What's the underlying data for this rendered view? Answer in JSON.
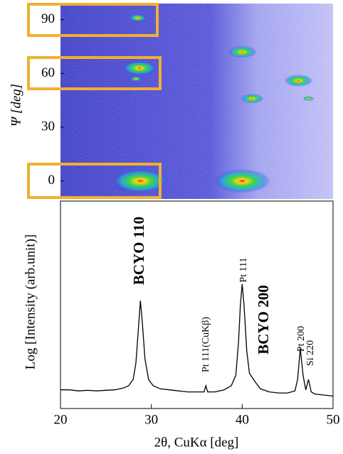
{
  "chart_data": [
    {
      "type": "scatter",
      "ylabel": "Ψ [deg]",
      "xlim": [
        20,
        50
      ],
      "ylim": [
        -10,
        99
      ],
      "yticks": [
        0,
        30,
        60,
        90
      ],
      "x": [
        28.8,
        40,
        28.7,
        28.3,
        40,
        46.2,
        41.1,
        47.3,
        28.5
      ],
      "y": [
        0,
        0,
        63,
        57,
        72,
        56,
        46,
        46,
        91
      ],
      "sizes": [
        10,
        10,
        6,
        2,
        5,
        5,
        4,
        2,
        3
      ]
    },
    {
      "type": "line",
      "xlabel": "2θ, CuKα [deg]",
      "ylabel": "Log [Intensity (arb.unit)]",
      "xlim": [
        20,
        50
      ],
      "xticks": [
        20,
        30,
        40,
        50
      ],
      "ylim": [
        0,
        100
      ],
      "color": "#000000",
      "x": [
        20,
        21,
        22,
        23,
        24,
        25,
        26,
        27,
        27.5,
        28,
        28.3,
        28.6,
        28.8,
        29.0,
        29.3,
        29.7,
        30.2,
        31,
        32,
        33,
        34,
        35,
        35.8,
        36,
        36.2,
        37,
        38,
        38.8,
        39.3,
        39.6,
        39.8,
        40.0,
        40.2,
        40.5,
        40.8,
        41.1,
        41.4,
        42,
        43,
        44,
        45,
        45.8,
        46.1,
        46.4,
        46.7,
        47.0,
        47.3,
        47.6,
        48,
        49,
        50
      ],
      "values": [
        9,
        9,
        8.5,
        8.8,
        8.5,
        8.8,
        9,
        10,
        11,
        14,
        22,
        40,
        52,
        42,
        24,
        14,
        11,
        9.5,
        9,
        8.5,
        8,
        8,
        8,
        11,
        8,
        8,
        9,
        11,
        16,
        32,
        50,
        60,
        50,
        28,
        17,
        15,
        13,
        9.5,
        8,
        7.5,
        7.5,
        8.5,
        14,
        29,
        16,
        9,
        14,
        8,
        7,
        6.5,
        6
      ],
      "annotations": [
        "BCYO 110",
        "Pt 111(CuKβ)",
        "Pt 111",
        "BCYO 200",
        "Pt 200",
        "Si 220"
      ]
    }
  ]
}
